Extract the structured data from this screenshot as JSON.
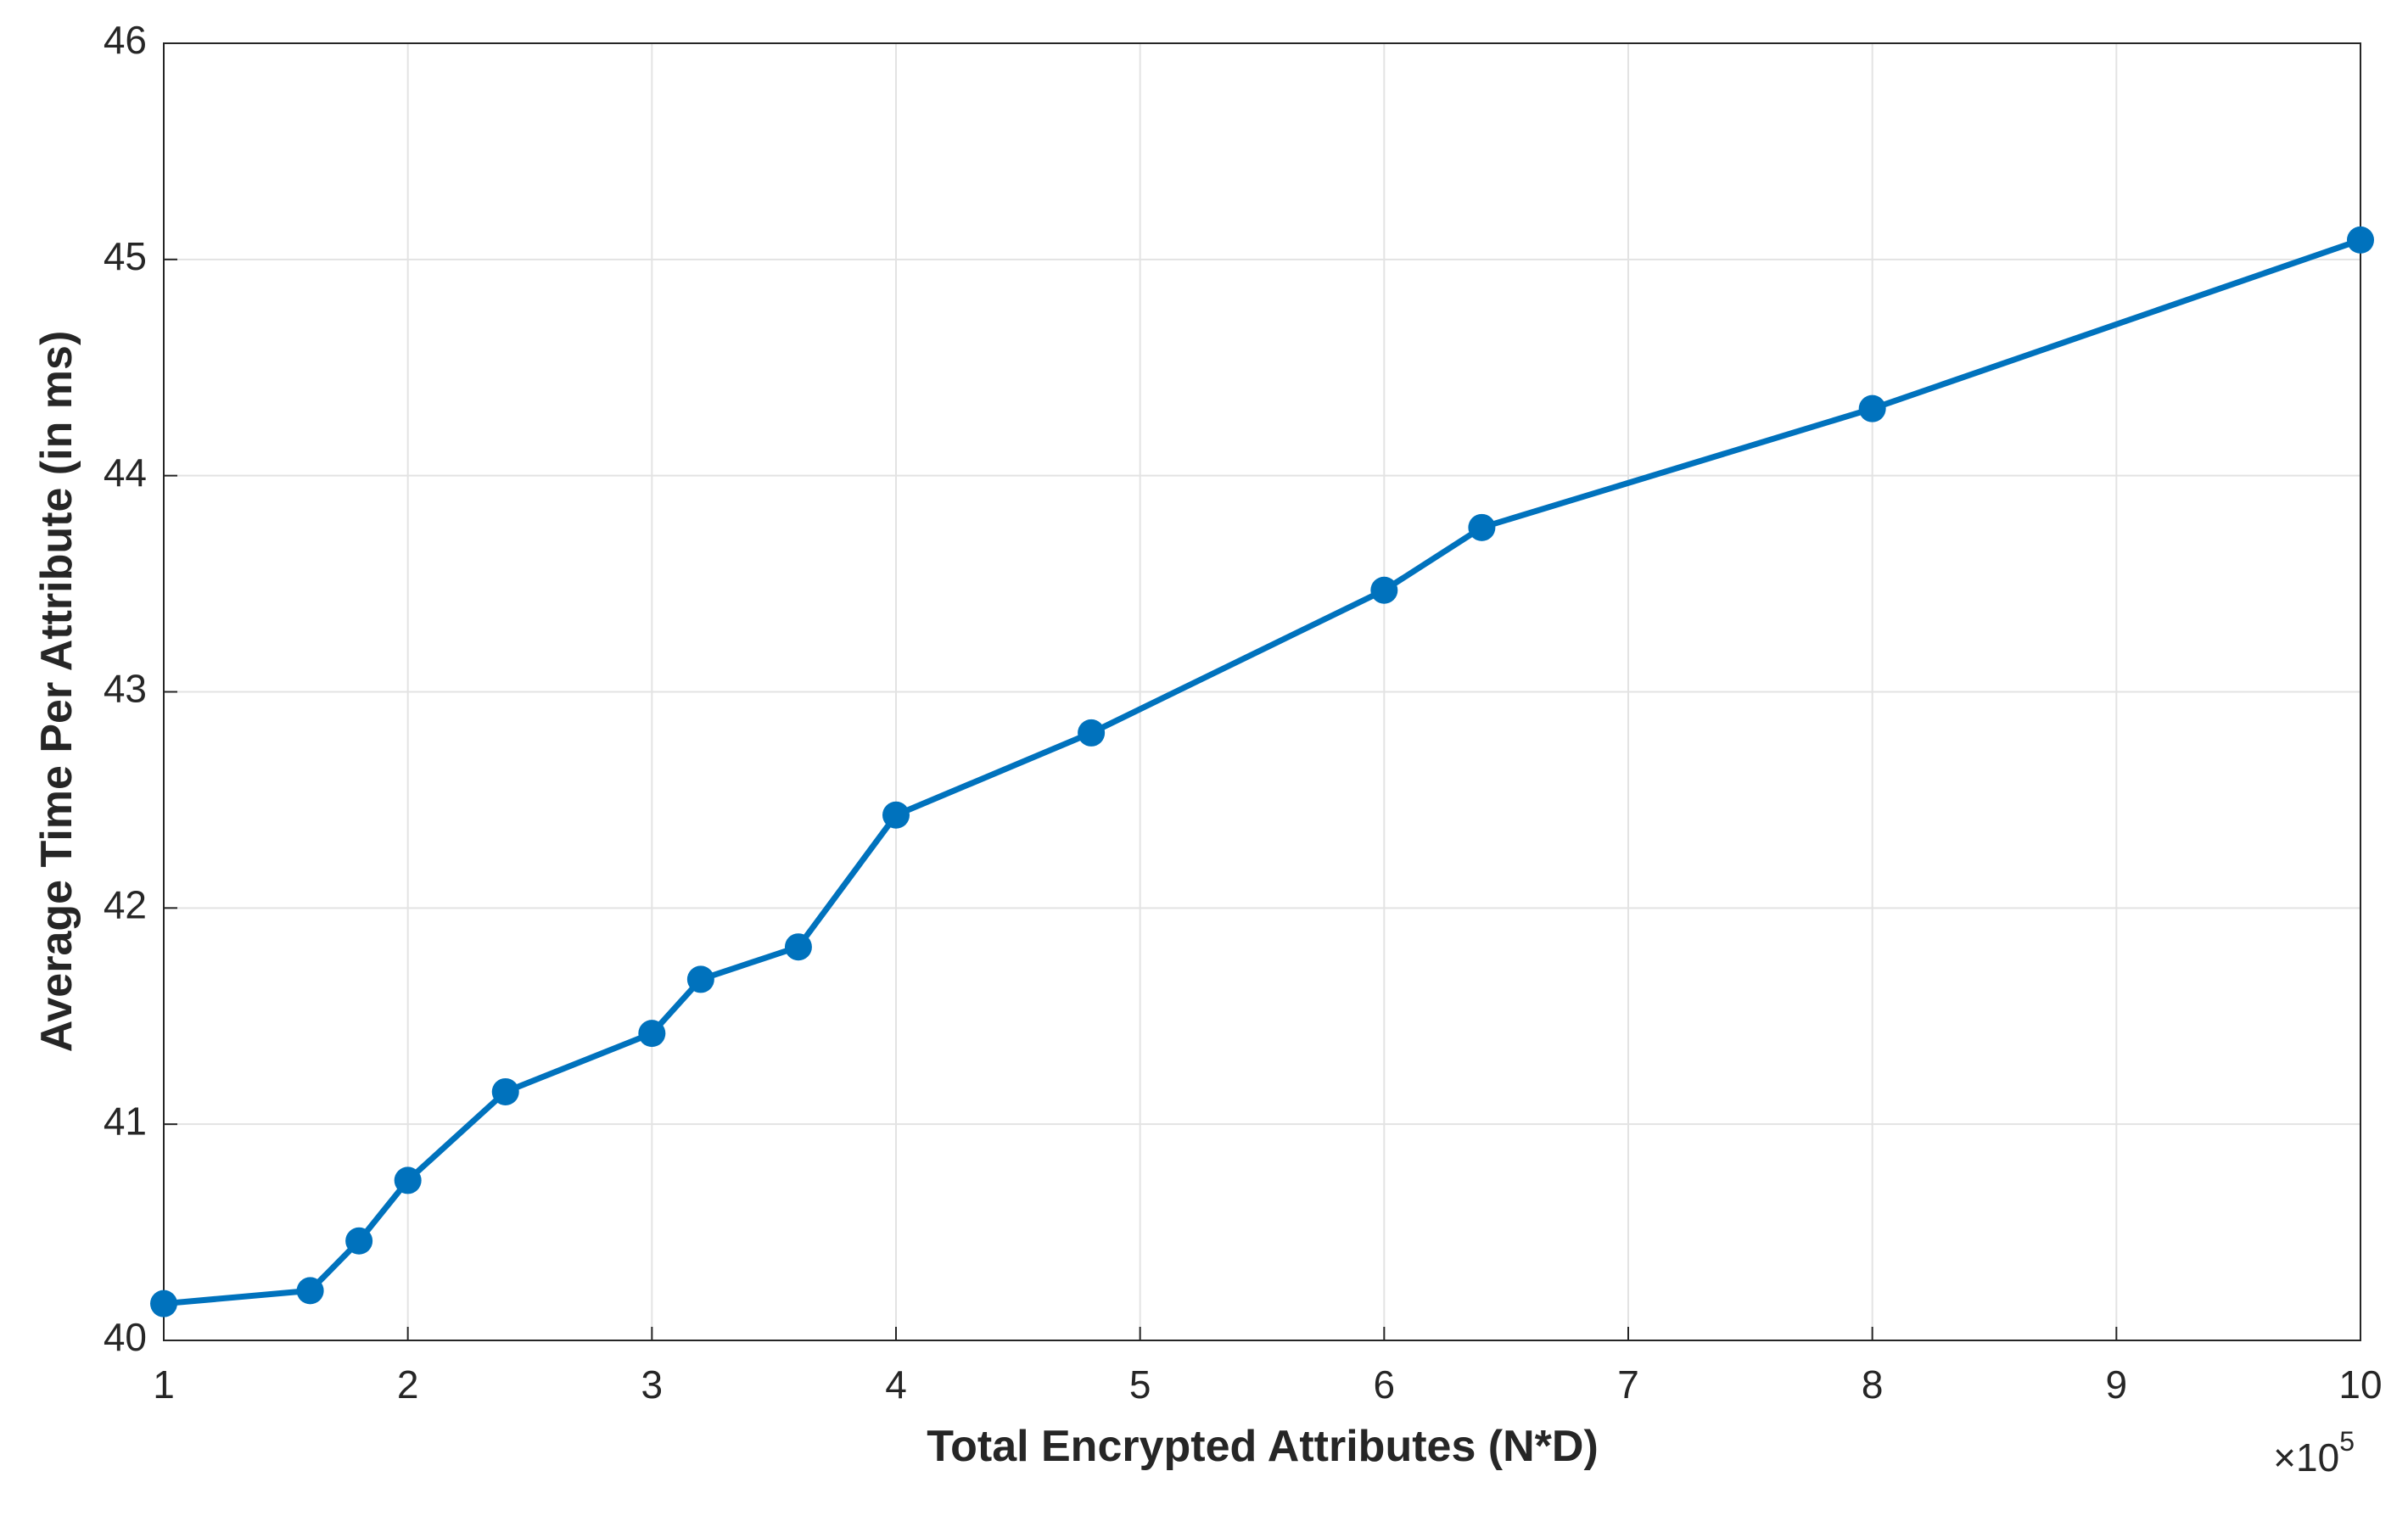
{
  "chart_data": {
    "type": "line",
    "x_label": "Total Encrypted Attributes (N*D)",
    "y_label": "Average Time Per Attribute (in ms)",
    "x_multiplier": {
      "base": "×10",
      "exponent": "5"
    },
    "x": [
      1,
      1.6,
      1.8,
      2,
      2.4,
      3,
      3.2,
      3.6,
      4,
      4.8,
      6,
      6.4,
      8,
      10
    ],
    "series": [
      {
        "color": "#0072bd",
        "values": [
          40.17,
          40.23,
          40.46,
          40.74,
          41.15,
          41.42,
          41.67,
          41.82,
          42.43,
          42.81,
          43.47,
          43.76,
          44.31,
          45.09
        ]
      }
    ],
    "xlim": [
      1,
      10
    ],
    "xticks": [
      1,
      2,
      3,
      4,
      5,
      6,
      7,
      8,
      9,
      10
    ],
    "ylim": [
      40,
      46
    ],
    "yticks": [
      40,
      41,
      42,
      43,
      44,
      45,
      46
    ],
    "grid": true
  }
}
